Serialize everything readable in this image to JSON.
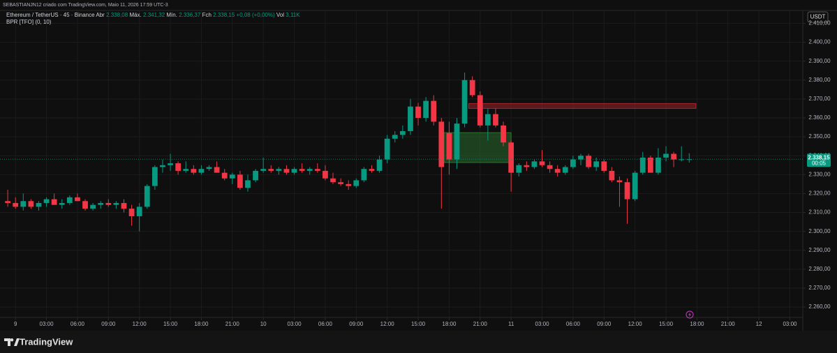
{
  "attribution": "SEBASTIANJN12 criado com TradingView.com, Maio 11, 2026 17:59 UTC-3",
  "brand": "TradingView",
  "chart_data": {
    "type": "candlestick",
    "title": "Ethereum / TetherUS · 45 · Binance",
    "legend": [
      {
        "label": "Abr",
        "value": "2.338,08"
      },
      {
        "label": "Máx.",
        "value": "2.341,32"
      },
      {
        "label": "Mín.",
        "value": "2.336,37"
      },
      {
        "label": "Fch",
        "value": "2.338,15"
      }
    ],
    "change": "+0,08 (+0,00%)",
    "volume": {
      "label": "Vol",
      "value": "3,11K"
    },
    "indicator": "BPR [TFO] (0, 10)",
    "currency": "USDT",
    "last_price_label": "2.338,15",
    "countdown": "00:05",
    "up_color": "#089981",
    "down_color": "#f23645",
    "grid": true,
    "x": [
      -0.75,
      0,
      0.75,
      1.5,
      2.25,
      3,
      3.75,
      4.5,
      5.25,
      6,
      6.75,
      7.5,
      8.25,
      9,
      9.75,
      10.5,
      11.25,
      12,
      12.75,
      13.5,
      14.25,
      15,
      15.75,
      16.5,
      17.25,
      18,
      18.75,
      19.5,
      20.25,
      21,
      21.75,
      22.5,
      23.25,
      24,
      24.75,
      25.5,
      26.25,
      27,
      27.75,
      28.5,
      29.25,
      30,
      30.75,
      31.5,
      32.25,
      33,
      33.75,
      34.5,
      35.25,
      36,
      36.75,
      37.5,
      38.25,
      39,
      39.75,
      40.5,
      41.25,
      42,
      42.75,
      43.5,
      44.25,
      45,
      45.75,
      46.5,
      47.25,
      48,
      48.75,
      49.5,
      50.25,
      51,
      51.75,
      52.5,
      53.25,
      54,
      54.75,
      55.5,
      56.25,
      57,
      57.75,
      58.5,
      59.25,
      60,
      60.75,
      61.5,
      62.25,
      63,
      63.75,
      64.5,
      65.25
    ],
    "ohlc": [
      [
        2316,
        2322,
        2313,
        2315
      ],
      [
        2315,
        2318,
        2312,
        2313
      ],
      [
        2313,
        2320,
        2311,
        2316
      ],
      [
        2316,
        2317,
        2312,
        2313
      ],
      [
        2313,
        2316,
        2311,
        2315
      ],
      [
        2315,
        2318,
        2313,
        2317
      ],
      [
        2317,
        2320,
        2314,
        2314
      ],
      [
        2314,
        2317,
        2312,
        2315
      ],
      [
        2315,
        2319,
        2314,
        2318
      ],
      [
        2318,
        2320,
        2316,
        2316
      ],
      [
        2316,
        2317,
        2311,
        2312
      ],
      [
        2312,
        2315,
        2311,
        2314
      ],
      [
        2314,
        2316,
        2312,
        2315
      ],
      [
        2315,
        2317,
        2313,
        2314
      ],
      [
        2314,
        2316,
        2312,
        2315
      ],
      [
        2315,
        2317,
        2310,
        2312
      ],
      [
        2312,
        2314,
        2303,
        2308
      ],
      [
        2308,
        2315,
        2300,
        2313
      ],
      [
        2313,
        2325,
        2312,
        2324
      ],
      [
        2324,
        2335,
        2322,
        2334
      ],
      [
        2334,
        2338,
        2331,
        2335
      ],
      [
        2335,
        2341,
        2332,
        2336
      ],
      [
        2336,
        2337,
        2330,
        2332
      ],
      [
        2332,
        2337,
        2331,
        2333
      ],
      [
        2333,
        2335,
        2330,
        2331
      ],
      [
        2331,
        2335,
        2330,
        2333
      ],
      [
        2333,
        2335,
        2332,
        2334
      ],
      [
        2334,
        2337,
        2331,
        2331
      ],
      [
        2331,
        2333,
        2327,
        2328
      ],
      [
        2328,
        2331,
        2325,
        2330
      ],
      [
        2330,
        2332,
        2322,
        2323
      ],
      [
        2323,
        2330,
        2321,
        2327
      ],
      [
        2327,
        2333,
        2326,
        2332
      ],
      [
        2332,
        2339,
        2331,
        2333
      ],
      [
        2333,
        2335,
        2331,
        2332
      ],
      [
        2332,
        2334,
        2330,
        2333
      ],
      [
        2333,
        2335,
        2330,
        2331
      ],
      [
        2331,
        2334,
        2330,
        2333
      ],
      [
        2333,
        2336,
        2331,
        2332
      ],
      [
        2332,
        2334,
        2330,
        2333
      ],
      [
        2333,
        2336,
        2331,
        2332
      ],
      [
        2332,
        2335,
        2327,
        2328
      ],
      [
        2328,
        2331,
        2325,
        2326
      ],
      [
        2326,
        2328,
        2324,
        2325
      ],
      [
        2325,
        2327,
        2322,
        2324
      ],
      [
        2324,
        2328,
        2323,
        2327
      ],
      [
        2327,
        2334,
        2326,
        2333
      ],
      [
        2333,
        2335,
        2331,
        2332
      ],
      [
        2332,
        2340,
        2331,
        2338
      ],
      [
        2338,
        2351,
        2336,
        2349
      ],
      [
        2349,
        2353,
        2347,
        2351
      ],
      [
        2351,
        2356,
        2349,
        2353
      ],
      [
        2353,
        2370,
        2351,
        2366
      ],
      [
        2366,
        2368,
        2356,
        2360
      ],
      [
        2360,
        2371,
        2358,
        2369
      ],
      [
        2369,
        2372,
        2356,
        2358
      ],
      [
        2358,
        2360,
        2312,
        2334
      ],
      [
        2352,
        2358,
        2330,
        2338
      ],
      [
        2338,
        2360,
        2333,
        2357
      ],
      [
        2357,
        2384,
        2355,
        2380
      ],
      [
        2380,
        2382,
        2371,
        2372
      ],
      [
        2372,
        2374,
        2355,
        2356
      ],
      [
        2356,
        2365,
        2348,
        2362
      ],
      [
        2362,
        2365,
        2355,
        2356
      ],
      [
        2356,
        2358,
        2345,
        2347
      ],
      [
        2347,
        2348,
        2321,
        2331
      ],
      [
        2331,
        2336,
        2329,
        2335
      ],
      [
        2335,
        2337,
        2332,
        2334
      ],
      [
        2334,
        2338,
        2333,
        2337
      ],
      [
        2337,
        2343,
        2334,
        2335
      ],
      [
        2335,
        2337,
        2331,
        2333
      ],
      [
        2333,
        2335,
        2329,
        2331
      ],
      [
        2331,
        2335,
        2330,
        2334
      ],
      [
        2334,
        2340,
        2333,
        2338
      ],
      [
        2338,
        2341,
        2335,
        2340
      ],
      [
        2340,
        2341,
        2333,
        2334
      ],
      [
        2334,
        2339,
        2332,
        2337
      ],
      [
        2337,
        2338,
        2331,
        2332
      ],
      [
        2332,
        2334,
        2326,
        2327
      ],
      [
        2327,
        2329,
        2313,
        2326
      ],
      [
        2326,
        2328,
        2304,
        2317
      ],
      [
        2317,
        2332,
        2316,
        2331
      ],
      [
        2331,
        2342,
        2330,
        2339
      ],
      [
        2339,
        2340,
        2331,
        2331
      ],
      [
        2331,
        2344,
        2330,
        2339
      ],
      [
        2339,
        2345,
        2337,
        2341
      ],
      [
        2341,
        2342,
        2334,
        2338
      ],
      [
        2338,
        2345,
        2337,
        2338.08
      ],
      [
        2338.08,
        2341.32,
        2336.37,
        2338.15
      ]
    ],
    "zones": [
      {
        "x": [
          43.9,
          65.9
        ],
        "y": [
          2365,
          2367.6
        ],
        "color": "#b2282e"
      },
      {
        "x": [
          41.5,
          48.0
        ],
        "y": [
          2336.4,
          2352.2
        ],
        "color": "#2e7d32"
      }
    ],
    "xlim": [
      -1.5,
      76.25
    ],
    "ylim": [
      2254.5,
      2416.8
    ],
    "xticks": [
      {
        "value": 0,
        "label": "9"
      },
      {
        "value": 3,
        "label": "03:00"
      },
      {
        "value": 6,
        "label": "06:00"
      },
      {
        "value": 9,
        "label": "09:00"
      },
      {
        "value": 12,
        "label": "12:00"
      },
      {
        "value": 15,
        "label": "15:00"
      },
      {
        "value": 18,
        "label": "18:00"
      },
      {
        "value": 21,
        "label": "21:00"
      },
      {
        "value": 24,
        "label": "10"
      },
      {
        "value": 27,
        "label": "03:00"
      },
      {
        "value": 30,
        "label": "06:00"
      },
      {
        "value": 33,
        "label": "09:00"
      },
      {
        "value": 36,
        "label": "12:00"
      },
      {
        "value": 39,
        "label": "15:00"
      },
      {
        "value": 42,
        "label": "18:00"
      },
      {
        "value": 45,
        "label": "21:00"
      },
      {
        "value": 48,
        "label": "11"
      },
      {
        "value": 51,
        "label": "03:00"
      },
      {
        "value": 54,
        "label": "06:00"
      },
      {
        "value": 57,
        "label": "09:00"
      },
      {
        "value": 60,
        "label": "12:00"
      },
      {
        "value": 63,
        "label": "15:00"
      },
      {
        "value": 66,
        "label": "18:00"
      },
      {
        "value": 69,
        "label": "21:00"
      },
      {
        "value": 72,
        "label": "12"
      },
      {
        "value": 75,
        "label": "03:00"
      }
    ],
    "yticks": [
      {
        "value": 2260,
        "label": "2.260,00"
      },
      {
        "value": 2270,
        "label": "2.270,00"
      },
      {
        "value": 2280,
        "label": "2.280,00"
      },
      {
        "value": 2290,
        "label": "2.290,00"
      },
      {
        "value": 2300,
        "label": "2.300,00"
      },
      {
        "value": 2310,
        "label": "2.310,00"
      },
      {
        "value": 2320,
        "label": "2.320,00"
      },
      {
        "value": 2330,
        "label": "2.330,00"
      },
      {
        "value": 2340,
        "label": "2.340,00"
      },
      {
        "value": 2350,
        "label": "2.350,00"
      },
      {
        "value": 2360,
        "label": "2.360,00"
      },
      {
        "value": 2370,
        "label": "2.370,00"
      },
      {
        "value": 2380,
        "label": "2.380,00"
      },
      {
        "value": 2390,
        "label": "2.390,00"
      },
      {
        "value": 2400,
        "label": "2.400,00"
      },
      {
        "value": 2410,
        "label": "2.410,00"
      }
    ]
  }
}
